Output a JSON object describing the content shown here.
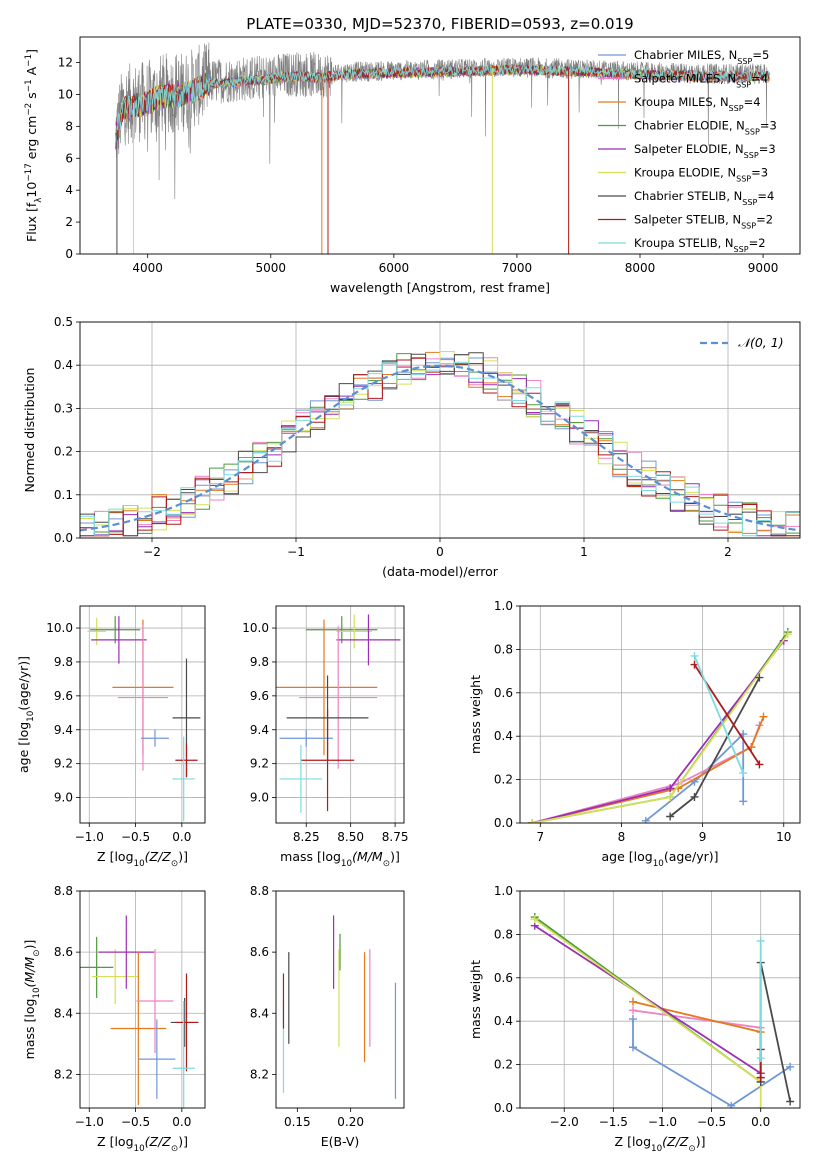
{
  "figure_title": "PLATE=0330, MJD=52370, FIBERID=0593, z=0.019",
  "colors": {
    "Chabrier MILES": "#6f97d7",
    "Salpeter MILES": "#ee82c6",
    "Kroupa MILES": "#e37a1d",
    "Chabrier ELODIE": "#4e9a3c",
    "Salpeter ELODIE": "#9b2fb5",
    "Kroupa ELODIE": "#d4e05a",
    "Chabrier STELIB": "#4a4a4a",
    "Salpeter STELIB": "#b01a1a",
    "Kroupa STELIB": "#7ddbe0",
    "gauss": "#5b8fd6"
  },
  "chart_data": [
    {
      "id": "spectrum",
      "type": "line",
      "title": "PLATE=0330, MJD=52370, FIBERID=0593, z=0.019",
      "xlabel": "wavelength [Angstrom, rest frame]",
      "ylabel_main": "Flux [f",
      "ylabel_sub": "λ",
      "ylabel_rest": "10",
      "ylabel_exp": "−17",
      "ylabel_tail": " erg cm",
      "ylabel_exp2": "−2",
      "ylabel_tail2": " s",
      "ylabel_exp3": "−1",
      "ylabel_tail3": " A",
      "ylabel_exp4": "−1",
      "ylabel_end": "]",
      "xlim": [
        3450,
        9300
      ],
      "ylim": [
        0,
        13.6
      ],
      "xticks": [
        4000,
        5000,
        6000,
        7000,
        8000,
        9000
      ],
      "yticks": [
        0,
        2,
        4,
        6,
        8,
        10,
        12
      ],
      "grid": false,
      "legend_position": "top-right",
      "legend": [
        {
          "name": "Chabrier MILES",
          "label": "Chabrier MILES, N",
          "sub": "SSP",
          "tail": "=5"
        },
        {
          "name": "Salpeter MILES",
          "label": "Salpeter MILES, N",
          "sub": "SSP",
          "tail": "=4"
        },
        {
          "name": "Kroupa MILES",
          "label": "Kroupa MILES, N",
          "sub": "SSP",
          "tail": "=4"
        },
        {
          "name": "Chabrier ELODIE",
          "label": "Chabrier ELODIE, N",
          "sub": "SSP",
          "tail": "=3"
        },
        {
          "name": "Salpeter ELODIE",
          "label": "Salpeter ELODIE, N",
          "sub": "SSP",
          "tail": "=3"
        },
        {
          "name": "Kroupa ELODIE",
          "label": "Kroupa ELODIE, N",
          "sub": "SSP",
          "tail": "=3"
        },
        {
          "name": "Chabrier STELIB",
          "label": "Chabrier STELIB, N",
          "sub": "SSP",
          "tail": "=4"
        },
        {
          "name": "Salpeter STELIB",
          "label": "Salpeter STELIB, N",
          "sub": "SSP",
          "tail": "=2"
        },
        {
          "name": "Kroupa STELIB",
          "label": "Kroupa STELIB, N",
          "sub": "SSP",
          "tail": "=2"
        }
      ],
      "data_range": [
        3740,
        9050
      ],
      "continuum": [
        [
          3740,
          7.5
        ],
        [
          3800,
          9.3
        ],
        [
          3900,
          9.5
        ],
        [
          4000,
          9.6
        ],
        [
          4100,
          10.0
        ],
        [
          4300,
          10.2
        ],
        [
          4500,
          10.8
        ],
        [
          4800,
          11.0
        ],
        [
          5000,
          11.1
        ],
        [
          5200,
          11.3
        ],
        [
          5400,
          11.2
        ],
        [
          5600,
          11.4
        ],
        [
          6000,
          11.5
        ],
        [
          6500,
          11.6
        ],
        [
          7000,
          11.7
        ],
        [
          7500,
          11.6
        ],
        [
          8000,
          11.4
        ],
        [
          8500,
          11.3
        ],
        [
          9000,
          11.3
        ]
      ],
      "drops": [
        {
          "x": 3750,
          "series": "Chabrier STELIB"
        },
        {
          "x": 3885,
          "series": "Kroupa ELODIE"
        },
        {
          "x": 5415,
          "series": "Kroupa MILES"
        },
        {
          "x": 5465,
          "series": "Salpeter STELIB"
        },
        {
          "x": 6800,
          "series": "Kroupa ELODIE"
        },
        {
          "x": 7420,
          "series": "Salpeter STELIB"
        }
      ]
    },
    {
      "id": "residuals",
      "type": "histogram",
      "xlabel": "(data-model)/error",
      "ylabel": "Normed distribution",
      "xlim": [
        -2.5,
        2.5
      ],
      "ylim": [
        0,
        0.5
      ],
      "xticks": [
        -2,
        -1,
        0,
        1,
        2
      ],
      "xtick_labels": [
        "−2",
        "−1",
        "0",
        "1",
        "2"
      ],
      "yticks": [
        0,
        0.1,
        0.2,
        0.3,
        0.4,
        0.5
      ],
      "ytick_labels": [
        "0.0",
        "0.1",
        "0.2",
        "0.3",
        "0.4",
        "0.5"
      ],
      "grid": true,
      "legend_position": "top-right",
      "legend_label": "𝒩(0, 1)",
      "bin_width": 0.1,
      "gaussian": {
        "mean": 0,
        "sigma": 1,
        "style": "dashed"
      }
    },
    {
      "id": "age-vs-Z",
      "type": "errorbar",
      "xlabel": "Z [log",
      "xlabel_sub": "10",
      "xlabel_tail": "(Z/Z",
      "xlabel_sub2": "⊙",
      "xlabel_end": ")]",
      "ylabel": "age  [log",
      "ylabel_sub": "10",
      "ylabel_tail": "(age/yr)]",
      "xlim": [
        -1.1,
        0.25
      ],
      "ylim": [
        8.85,
        10.13
      ],
      "xticks": [
        -1.0,
        -0.5,
        0.0
      ],
      "xtick_labels": [
        "−1.0",
        "−0.5",
        "0.0"
      ],
      "yticks": [
        9.0,
        9.2,
        9.4,
        9.6,
        9.8,
        10.0
      ],
      "ytick_labels": [
        "9.0",
        "9.2",
        "9.4",
        "9.6",
        "9.8",
        "10.0"
      ],
      "grid": true,
      "points": [
        {
          "series": "Kroupa ELODIE",
          "x": -0.92,
          "xerr": 0.1,
          "y": 9.98,
          "yerr": 0.08
        },
        {
          "series": "Chabrier ELODIE",
          "x": -0.72,
          "xerr": 0.27,
          "y": 9.99,
          "yerr": 0.08
        },
        {
          "series": "Salpeter ELODIE",
          "x": -0.68,
          "xerr": 0.3,
          "y": 9.93,
          "yerr": 0.14
        },
        {
          "series": "Kroupa MILES",
          "x": -0.42,
          "xerr": 0.33,
          "y": 9.65,
          "yerr": 0.4
        },
        {
          "series": "Salpeter MILES",
          "x": -0.42,
          "xerr": 0.27,
          "y": 9.59,
          "yerr": 0.43
        },
        {
          "series": "Chabrier MILES",
          "x": -0.29,
          "xerr": 0.15,
          "y": 9.35,
          "yerr": 0.05
        },
        {
          "series": "Chabrier STELIB",
          "x": 0.05,
          "xerr": 0.15,
          "y": 9.47,
          "yerr": 0.35
        },
        {
          "series": "Salpeter STELIB",
          "x": 0.05,
          "xerr": 0.12,
          "y": 9.22,
          "yerr": 0.1
        },
        {
          "series": "Kroupa STELIB",
          "x": 0.02,
          "xerr": 0.12,
          "y": 9.11,
          "yerr": 0.25
        }
      ]
    },
    {
      "id": "age-vs-mass",
      "type": "errorbar",
      "xlabel": "mass [log",
      "xlabel_sub": "10",
      "xlabel_tail": "(M/M",
      "xlabel_sub2": "⊙",
      "xlabel_end": ")]",
      "ylabel": "",
      "xlim": [
        8.08,
        8.8
      ],
      "ylim": [
        8.85,
        10.13
      ],
      "xticks": [
        8.25,
        8.5,
        8.75
      ],
      "xtick_labels": [
        "8.25",
        "8.50",
        "8.75"
      ],
      "yticks": [
        9.0,
        9.2,
        9.4,
        9.6,
        9.8,
        10.0
      ],
      "ytick_labels": [
        "9.0",
        "9.2",
        "9.4",
        "9.6",
        "9.8",
        "10.0"
      ],
      "grid": true,
      "points": [
        {
          "series": "Chabrier ELODIE",
          "x": 8.45,
          "xerr": 0.2,
          "y": 9.99,
          "yerr": 0.08
        },
        {
          "series": "Kroupa ELODIE",
          "x": 8.52,
          "xerr": 0.1,
          "y": 9.98,
          "yerr": 0.1
        },
        {
          "series": "Salpeter ELODIE",
          "x": 8.6,
          "xerr": 0.18,
          "y": 9.93,
          "yerr": 0.15
        },
        {
          "series": "Kroupa MILES",
          "x": 8.35,
          "xerr": 0.3,
          "y": 9.65,
          "yerr": 0.4
        },
        {
          "series": "Salpeter MILES",
          "x": 8.43,
          "xerr": 0.22,
          "y": 9.59,
          "yerr": 0.42
        },
        {
          "series": "Chabrier MILES",
          "x": 8.25,
          "xerr": 0.15,
          "y": 9.35,
          "yerr": 0.05
        },
        {
          "series": "Chabrier STELIB",
          "x": 8.37,
          "xerr": 0.23,
          "y": 9.47,
          "yerr": 0.25
        },
        {
          "series": "Salpeter STELIB",
          "x": 8.37,
          "xerr": 0.15,
          "y": 9.22,
          "yerr": 0.3
        },
        {
          "series": "Kroupa STELIB",
          "x": 8.22,
          "xerr": 0.12,
          "y": 9.11,
          "yerr": 0.2
        }
      ]
    },
    {
      "id": "weight-vs-age",
      "type": "line",
      "xlabel": "age  [log",
      "xlabel_sub": "10",
      "xlabel_tail": "(age/yr)]",
      "ylabel": "mass weight",
      "xlim": [
        6.75,
        10.2
      ],
      "ylim": [
        0,
        1.0
      ],
      "xticks": [
        7,
        8,
        9,
        10
      ],
      "xtick_labels": [
        "7",
        "8",
        "9",
        "10"
      ],
      "yticks": [
        0,
        0.2,
        0.4,
        0.6,
        0.8,
        1.0
      ],
      "ytick_labels": [
        "0.0",
        "0.2",
        "0.4",
        "0.6",
        "0.8",
        "1.0"
      ],
      "grid": true,
      "series": [
        {
          "name": "Chabrier MILES",
          "x": [
            8.3,
            8.9,
            9.5,
            9.5
          ],
          "y": [
            0.01,
            0.19,
            0.41,
            0.1
          ]
        },
        {
          "name": "Salpeter MILES",
          "x": [
            6.9,
            8.7,
            9.6,
            9.7
          ],
          "y": [
            0.0,
            0.18,
            0.35,
            0.45
          ]
        },
        {
          "name": "Kroupa MILES",
          "x": [
            6.9,
            8.7,
            9.6,
            9.75
          ],
          "y": [
            0.0,
            0.16,
            0.35,
            0.49
          ]
        },
        {
          "name": "Chabrier ELODIE",
          "x": [
            6.9,
            8.6,
            10.05
          ],
          "y": [
            0.0,
            0.12,
            0.88
          ]
        },
        {
          "name": "Salpeter ELODIE",
          "x": [
            6.9,
            8.6,
            10.0
          ],
          "y": [
            0.0,
            0.16,
            0.84
          ]
        },
        {
          "name": "Kroupa ELODIE",
          "x": [
            6.9,
            8.6,
            10.05
          ],
          "y": [
            0.0,
            0.12,
            0.87
          ]
        },
        {
          "name": "Chabrier STELIB",
          "x": [
            8.6,
            8.9,
            9.7
          ],
          "y": [
            0.03,
            0.12,
            0.67
          ]
        },
        {
          "name": "Salpeter STELIB",
          "x": [
            8.9,
            9.7
          ],
          "y": [
            0.73,
            0.27
          ]
        },
        {
          "name": "Kroupa STELIB",
          "x": [
            8.9,
            9.5
          ],
          "y": [
            0.77,
            0.23
          ]
        }
      ]
    },
    {
      "id": "mass-vs-Z",
      "type": "errorbar",
      "xlabel": "Z [log",
      "xlabel_sub": "10",
      "xlabel_tail": "(Z/Z",
      "xlabel_sub2": "⊙",
      "xlabel_end": ")]",
      "ylabel": "mass [log",
      "ylabel_sub": "10",
      "ylabel_tail": "(M/M",
      "ylabel_sub2": "⊙",
      "ylabel_end": ")]",
      "xlim": [
        -1.1,
        0.25
      ],
      "ylim": [
        8.09,
        8.8
      ],
      "xticks": [
        -1.0,
        -0.5,
        0.0
      ],
      "xtick_labels": [
        "−1.0",
        "−0.5",
        "0.0"
      ],
      "yticks": [
        8.2,
        8.4,
        8.6,
        8.8
      ],
      "ytick_labels": [
        "8.2",
        "8.4",
        "8.6",
        "8.8"
      ],
      "grid": true,
      "points": [
        {
          "series": "Chabrier ELODIE",
          "x": -0.92,
          "xerr": 0.18,
          "y": 8.55,
          "yerr": 0.1
        },
        {
          "series": "Kroupa ELODIE",
          "x": -0.72,
          "xerr": 0.25,
          "y": 8.52,
          "yerr": 0.09
        },
        {
          "series": "Salpeter ELODIE",
          "x": -0.6,
          "xerr": 0.3,
          "y": 8.6,
          "yerr": 0.12
        },
        {
          "series": "Kroupa MILES",
          "x": -0.47,
          "xerr": 0.3,
          "y": 8.35,
          "yerr": 0.25
        },
        {
          "series": "Salpeter MILES",
          "x": -0.29,
          "xerr": 0.2,
          "y": 8.44,
          "yerr": 0.17
        },
        {
          "series": "Chabrier MILES",
          "x": -0.27,
          "xerr": 0.2,
          "y": 8.25,
          "yerr": 0.13
        },
        {
          "series": "Chabrier STELIB",
          "x": 0.03,
          "xerr": 0.15,
          "y": 8.37,
          "yerr": 0.08
        },
        {
          "series": "Salpeter STELIB",
          "x": 0.05,
          "xerr": 0.12,
          "y": 8.37,
          "yerr": 0.16
        },
        {
          "series": "Kroupa STELIB",
          "x": 0.02,
          "xerr": 0.12,
          "y": 8.22,
          "yerr": 0.22
        }
      ]
    },
    {
      "id": "mass-vs-EBV",
      "type": "errorbar",
      "xlabel": "E(B-V)",
      "ylabel": "",
      "xlim": [
        0.13,
        0.25
      ],
      "ylim": [
        8.09,
        8.8
      ],
      "xticks": [
        0.15,
        0.2
      ],
      "xtick_labels": [
        "0.15",
        "0.20"
      ],
      "yticks": [
        8.2,
        8.4,
        8.6,
        8.8
      ],
      "ytick_labels": [
        "8.2",
        "8.4",
        "8.6",
        "8.8"
      ],
      "grid": false,
      "points": [
        {
          "series": "Kroupa STELIB",
          "x": 0.137,
          "xerr": 0,
          "y": 8.29,
          "yerr": 0.15
        },
        {
          "series": "Salpeter STELIB",
          "x": 0.137,
          "xerr": 0,
          "y": 8.44,
          "yerr": 0.09
        },
        {
          "series": "Chabrier STELIB",
          "x": 0.142,
          "xerr": 0,
          "y": 8.45,
          "yerr": 0.15
        },
        {
          "series": "Salpeter ELODIE",
          "x": 0.184,
          "xerr": 0,
          "y": 8.6,
          "yerr": 0.12
        },
        {
          "series": "Chabrier ELODIE",
          "x": 0.19,
          "xerr": 0,
          "y": 8.6,
          "yerr": 0.06
        },
        {
          "series": "Kroupa ELODIE",
          "x": 0.189,
          "xerr": 0,
          "y": 8.45,
          "yerr": 0.16
        },
        {
          "series": "Kroupa MILES",
          "x": 0.213,
          "xerr": 0,
          "y": 8.42,
          "yerr": 0.18
        },
        {
          "series": "Salpeter MILES",
          "x": 0.218,
          "xerr": 0,
          "y": 8.45,
          "yerr": 0.16
        },
        {
          "series": "Chabrier MILES",
          "x": 0.242,
          "xerr": 0,
          "y": 8.31,
          "yerr": 0.19
        }
      ]
    },
    {
      "id": "weight-vs-Z",
      "type": "line",
      "xlabel": "Z [log",
      "xlabel_sub": "10",
      "xlabel_tail": "(Z/Z",
      "xlabel_sub2": "⊙",
      "xlabel_end": ")]",
      "ylabel": "mass weight",
      "xlim": [
        -2.45,
        0.4
      ],
      "ylim": [
        0,
        1.0
      ],
      "xticks": [
        -2.0,
        -1.5,
        -1.0,
        -0.5,
        0.0
      ],
      "xtick_labels": [
        "−2.0",
        "−1.5",
        "−1.0",
        "−0.5",
        "0.0"
      ],
      "yticks": [
        0,
        0.2,
        0.4,
        0.6,
        0.8,
        1.0
      ],
      "ytick_labels": [
        "0.0",
        "0.2",
        "0.4",
        "0.6",
        "0.8",
        "1.0"
      ],
      "grid": true,
      "series": [
        {
          "name": "Chabrier MILES",
          "x": [
            -1.3,
            -1.3,
            -0.3,
            0.3
          ],
          "y": [
            0.41,
            0.28,
            0.01,
            0.19
          ]
        },
        {
          "name": "Salpeter MILES",
          "x": [
            -1.3,
            -0.0,
            0.0
          ],
          "y": [
            0.45,
            0.37,
            0.16
          ]
        },
        {
          "name": "Kroupa MILES",
          "x": [
            -1.3,
            -0.0,
            0.0
          ],
          "y": [
            0.49,
            0.35,
            0.16
          ]
        },
        {
          "name": "Chabrier ELODIE",
          "x": [
            -2.3,
            0.0
          ],
          "y": [
            0.88,
            0.12
          ]
        },
        {
          "name": "Salpeter ELODIE",
          "x": [
            -2.3,
            0.0
          ],
          "y": [
            0.84,
            0.16
          ]
        },
        {
          "name": "Kroupa ELODIE",
          "x": [
            -2.3,
            0.0,
            0.0
          ],
          "y": [
            0.87,
            0.12,
            0.0
          ]
        },
        {
          "name": "Chabrier STELIB",
          "x": [
            0.0,
            0.0,
            0.3
          ],
          "y": [
            0.12,
            0.67,
            0.03
          ]
        },
        {
          "name": "Salpeter STELIB",
          "x": [
            0.0,
            0.0
          ],
          "y": [
            0.27,
            0.14
          ]
        },
        {
          "name": "Kroupa STELIB",
          "x": [
            0.0,
            0.0
          ],
          "y": [
            0.77,
            0.23
          ]
        }
      ]
    }
  ]
}
